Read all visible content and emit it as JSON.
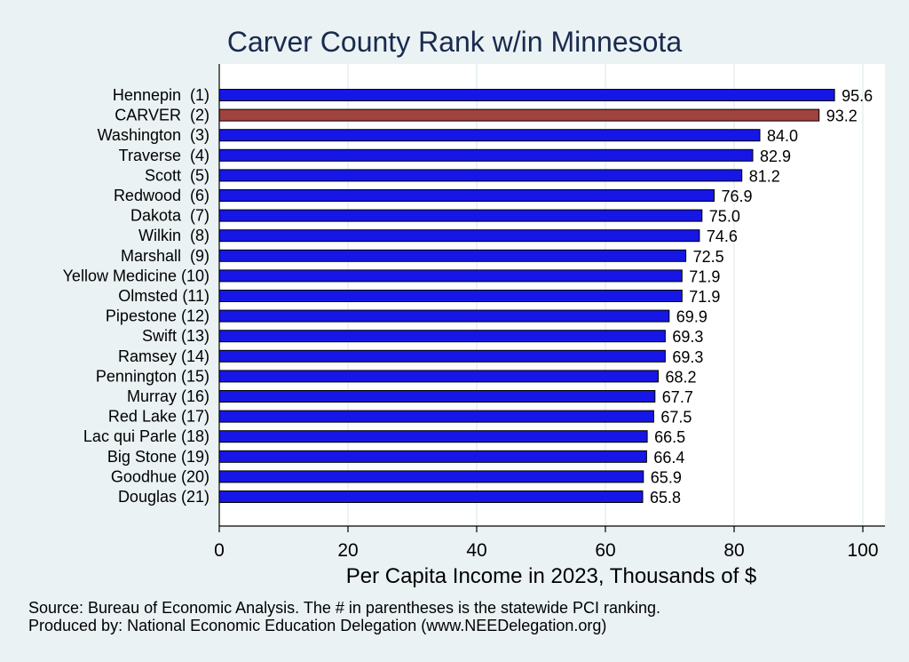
{
  "chart_data": {
    "type": "bar",
    "orientation": "horizontal",
    "title": "Carver County Rank w/in Minnesota",
    "xlabel": "Per Capita Income in 2023, Thousands of $",
    "ylabel": "",
    "xlim": [
      0,
      100
    ],
    "xticks": [
      "0",
      "20",
      "40",
      "60",
      "80",
      "100"
    ],
    "grid": true,
    "categories": [
      "Hennepin  (1)",
      "CARVER  (2)",
      "Washington  (3)",
      "Traverse  (4)",
      "Scott  (5)",
      "Redwood  (6)",
      "Dakota  (7)",
      "Wilkin  (8)",
      "Marshall  (9)",
      "Yellow Medicine (10)",
      "Olmsted (11)",
      "Pipestone (12)",
      "Swift (13)",
      "Ramsey (14)",
      "Pennington (15)",
      "Murray (16)",
      "Red Lake (17)",
      "Lac qui Parle (18)",
      "Big Stone (19)",
      "Goodhue (20)",
      "Douglas (21)"
    ],
    "values": [
      95.6,
      93.2,
      84.0,
      82.9,
      81.2,
      76.9,
      75.0,
      74.6,
      72.5,
      71.9,
      71.9,
      69.9,
      69.3,
      69.3,
      68.2,
      67.7,
      67.5,
      66.5,
      66.4,
      65.9,
      65.8
    ],
    "value_labels": [
      "95.6",
      "93.2",
      "84.0",
      "82.9",
      "81.2",
      "76.9",
      "75.0",
      "74.6",
      "72.5",
      "71.9",
      "71.9",
      "69.9",
      "69.3",
      "69.3",
      "68.2",
      "67.7",
      "67.5",
      "66.5",
      "66.4",
      "65.9",
      "65.8"
    ],
    "highlight_index": 1,
    "colors": {
      "bar": "#1616e6",
      "highlight": "#a0423d",
      "bar_edge": "#000000",
      "background": "#eaf2f3",
      "plot_bg": "#ffffff",
      "grid": "#e6eef0",
      "title": "#1a2a4f"
    }
  },
  "footnotes": [
    "Source: Bureau of Economic Analysis. The # in parentheses is the statewide PCI ranking.",
    "Produced by: National Economic Education Delegation (www.NEEDelegation.org)"
  ]
}
